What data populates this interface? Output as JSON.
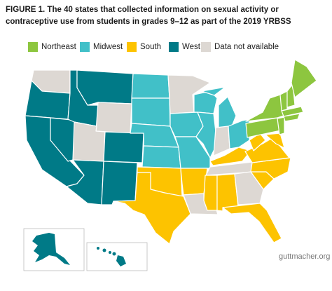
{
  "title": {
    "lines": [
      "FIGURE 1. The 40 states that collected information on sexual activity or",
      "contraceptive use from students in grades 9–12 as part of the 2019 YRBSS"
    ]
  },
  "legend": [
    {
      "label": "Northeast",
      "color": "#8dc63f"
    },
    {
      "label": "Midwest",
      "color": "#41c0c8"
    },
    {
      "label": "South",
      "color": "#fdc300"
    },
    {
      "label": "West",
      "color": "#007a87"
    },
    {
      "label": "Data not available",
      "color": "#ddd8d3"
    }
  ],
  "footer": "guttmacher.org"
}
